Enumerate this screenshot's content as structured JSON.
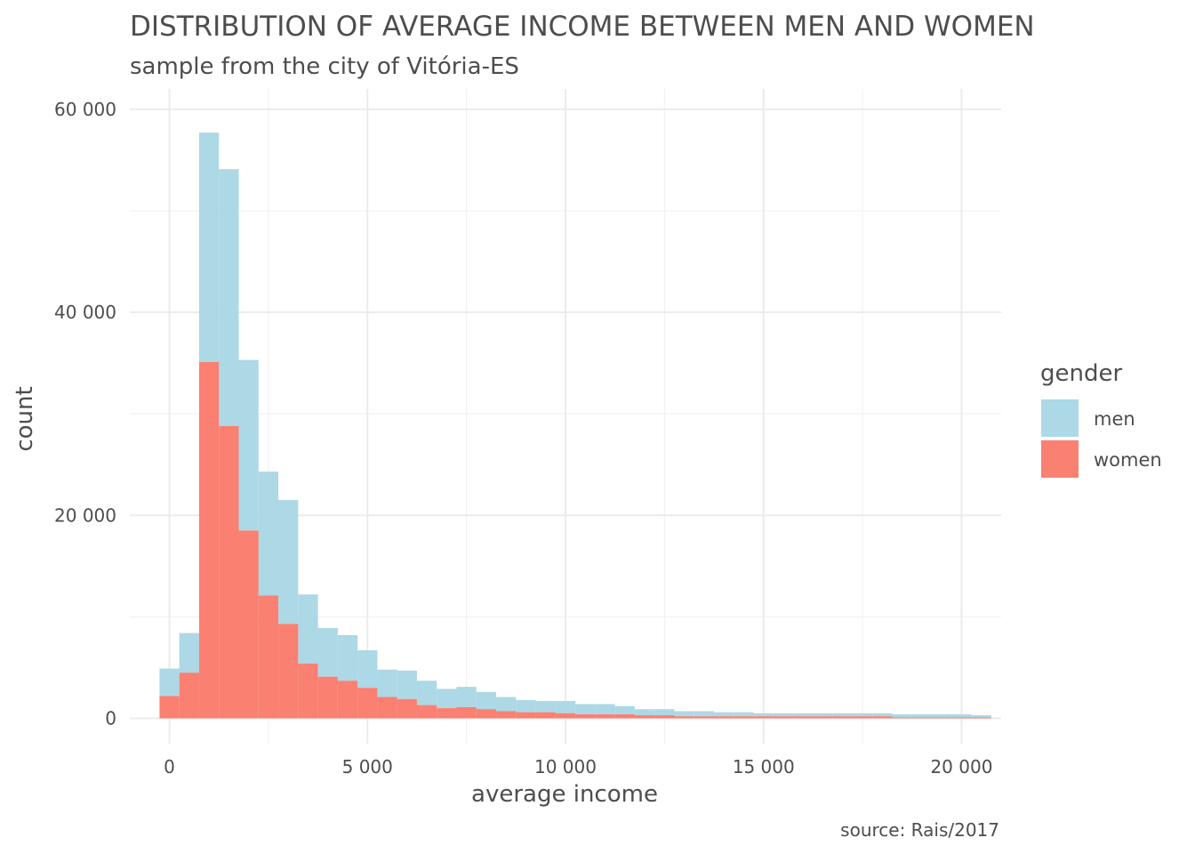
{
  "chart_data": {
    "type": "bar",
    "subtype": "stacked-histogram",
    "title": "DISTRIBUTION OF AVERAGE INCOME BETWEEN MEN AND WOMEN",
    "subtitle": "sample from the city of Vitória-ES",
    "xlabel": "average income",
    "ylabel": "count",
    "caption": "source: Rais/2017",
    "xlim": [
      -1000,
      21000
    ],
    "ylim": [
      -2500,
      62000
    ],
    "x_ticks": [
      {
        "value": 0,
        "label": "0"
      },
      {
        "value": 5000,
        "label": "5 000"
      },
      {
        "value": 10000,
        "label": "10 000"
      },
      {
        "value": 15000,
        "label": "15 000"
      },
      {
        "value": 20000,
        "label": "20 000"
      }
    ],
    "y_ticks": [
      {
        "value": 0,
        "label": "0"
      },
      {
        "value": 20000,
        "label": "20 000"
      },
      {
        "value": 40000,
        "label": "40 000"
      },
      {
        "value": 60000,
        "label": "60 000"
      }
    ],
    "grid": true,
    "legend": {
      "title": "gender",
      "position": "right"
    },
    "bin_width": 500,
    "bin_start": -250,
    "series": [
      {
        "name": "men",
        "color": "#add8e6",
        "values": [
          2700,
          3900,
          22600,
          25300,
          16800,
          12200,
          12200,
          6800,
          4800,
          4500,
          3700,
          2700,
          2800,
          2400,
          1900,
          2000,
          1700,
          1400,
          1200,
          1100,
          1200,
          1000,
          1000,
          800,
          600,
          600,
          500,
          500,
          400,
          400,
          300,
          300,
          300,
          300,
          300,
          300,
          300,
          300,
          300,
          300,
          300,
          200
        ]
      },
      {
        "name": "women",
        "color": "#fa8072",
        "values": [
          2200,
          4500,
          35100,
          28800,
          18500,
          12100,
          9300,
          5400,
          4100,
          3700,
          3000,
          2100,
          1900,
          1300,
          1000,
          1100,
          900,
          700,
          600,
          600,
          500,
          400,
          400,
          400,
          300,
          300,
          200,
          200,
          200,
          200,
          200,
          200,
          200,
          200,
          200,
          200,
          200,
          100,
          100,
          100,
          100,
          100
        ]
      }
    ]
  }
}
